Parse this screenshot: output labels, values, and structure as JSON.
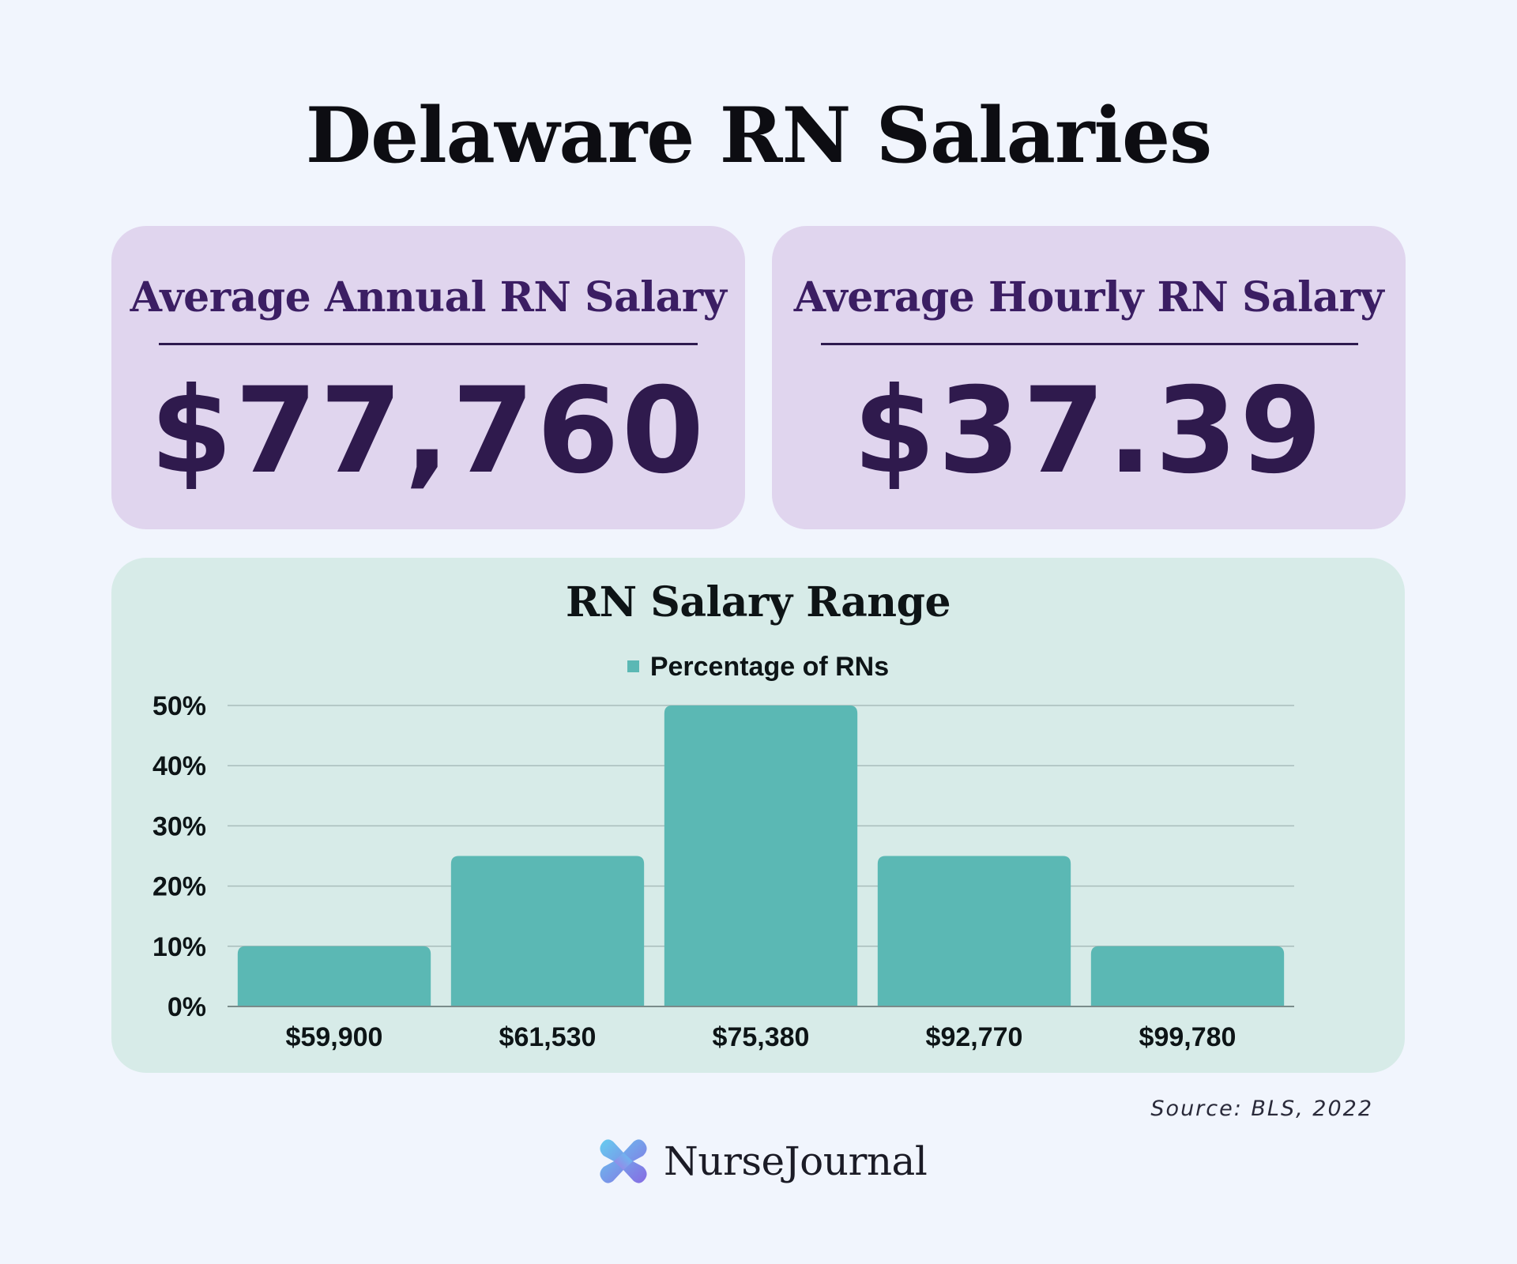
{
  "title": "Delaware RN Salaries",
  "cards": {
    "annual": {
      "label": "Average Annual RN Salary",
      "value": "$77,760"
    },
    "hourly": {
      "label": "Average Hourly RN Salary",
      "value": "$37.39"
    }
  },
  "chart_data": {
    "type": "bar",
    "title": "RN Salary Range",
    "categories": [
      "$59,900",
      "$61,530",
      "$75,380",
      "$92,770",
      "$99,780"
    ],
    "series": [
      {
        "name": "Percentage of RNs",
        "values": [
          10,
          25,
          50,
          25,
          10
        ],
        "color": "#5bb8b4"
      }
    ],
    "yticks": [
      "0%",
      "10%",
      "20%",
      "30%",
      "40%",
      "50%"
    ],
    "ylim": [
      0,
      50
    ],
    "grid": true,
    "legend_position": "top-center"
  },
  "source": "Source: BLS, 2022",
  "brand": {
    "name": "NurseJournal",
    "logo_icon": "nursejournal-logo-icon"
  },
  "colors": {
    "background": "#f1f5fd",
    "card": "#e0d5ee",
    "card_text": "#3b1e63",
    "chart_panel": "#d7ebe8",
    "bar": "#5bb8b4"
  }
}
